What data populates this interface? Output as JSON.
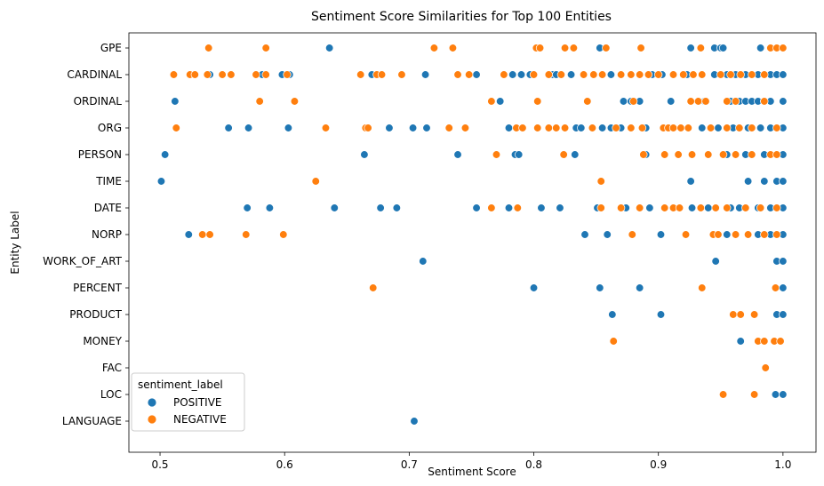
{
  "chart_data": {
    "type": "scatter",
    "title": "Sentiment Score Similarities for Top 100 Entities",
    "xlabel": "Sentiment Score",
    "ylabel": "Entity Label",
    "xlim": [
      0.475,
      1.0265
    ],
    "xticks": [
      "0.5",
      "0.6",
      "0.7",
      "0.8",
      "0.9",
      "1.0"
    ],
    "xtick_values": [
      0.5,
      0.6,
      0.7,
      0.8,
      0.9,
      1.0
    ],
    "categories": [
      "GPE",
      "CARDINAL",
      "ORDINAL",
      "ORG",
      "PERSON",
      "TIME",
      "DATE",
      "NORP",
      "WORK_OF_ART",
      "PERCENT",
      "PRODUCT",
      "MONEY",
      "FAC",
      "LOC",
      "LANGUAGE"
    ],
    "grid": false,
    "legend": {
      "title": "sentiment_label",
      "position": "lower-left"
    },
    "series": [
      {
        "name": "POSITIVE",
        "color": "#1f77b4",
        "points": [
          [
            0.636,
            "GPE"
          ],
          [
            0.853,
            "GPE"
          ],
          [
            0.926,
            "GPE"
          ],
          [
            0.945,
            "GPE"
          ],
          [
            0.95,
            "GPE"
          ],
          [
            0.952,
            "GPE"
          ],
          [
            0.982,
            "GPE"
          ],
          [
            0.54,
            "CARDINAL"
          ],
          [
            0.582,
            "CARDINAL"
          ],
          [
            0.598,
            "CARDINAL"
          ],
          [
            0.604,
            "CARDINAL"
          ],
          [
            0.67,
            "CARDINAL"
          ],
          [
            0.713,
            "CARDINAL"
          ],
          [
            0.754,
            "CARDINAL"
          ],
          [
            0.783,
            "CARDINAL"
          ],
          [
            0.79,
            "CARDINAL"
          ],
          [
            0.797,
            "CARDINAL"
          ],
          [
            0.815,
            "CARDINAL"
          ],
          [
            0.818,
            "CARDINAL"
          ],
          [
            0.83,
            "CARDINAL"
          ],
          [
            0.862,
            "CARDINAL"
          ],
          [
            0.895,
            "CARDINAL"
          ],
          [
            0.903,
            "CARDINAL"
          ],
          [
            0.923,
            "CARDINAL"
          ],
          [
            0.945,
            "CARDINAL"
          ],
          [
            0.955,
            "CARDINAL"
          ],
          [
            0.962,
            "CARDINAL"
          ],
          [
            0.97,
            "CARDINAL"
          ],
          [
            0.98,
            "CARDINAL"
          ],
          [
            0.99,
            "CARDINAL"
          ],
          [
            0.995,
            "CARDINAL"
          ],
          [
            1.0,
            "CARDINAL"
          ],
          [
            0.512,
            "ORDINAL"
          ],
          [
            0.773,
            "ORDINAL"
          ],
          [
            0.872,
            "ORDINAL"
          ],
          [
            0.878,
            "ORDINAL"
          ],
          [
            0.885,
            "ORDINAL"
          ],
          [
            0.91,
            "ORDINAL"
          ],
          [
            0.937,
            "ORDINAL"
          ],
          [
            0.958,
            "ORDINAL"
          ],
          [
            0.965,
            "ORDINAL"
          ],
          [
            0.97,
            "ORDINAL"
          ],
          [
            0.975,
            "ORDINAL"
          ],
          [
            0.98,
            "ORDINAL"
          ],
          [
            0.985,
            "ORDINAL"
          ],
          [
            0.99,
            "ORDINAL"
          ],
          [
            1.0,
            "ORDINAL"
          ],
          [
            0.555,
            "ORG"
          ],
          [
            0.571,
            "ORG"
          ],
          [
            0.603,
            "ORG"
          ],
          [
            0.684,
            "ORG"
          ],
          [
            0.703,
            "ORG"
          ],
          [
            0.714,
            "ORG"
          ],
          [
            0.78,
            "ORG"
          ],
          [
            0.834,
            "ORG"
          ],
          [
            0.838,
            "ORG"
          ],
          [
            0.855,
            "ORG"
          ],
          [
            0.862,
            "ORG"
          ],
          [
            0.87,
            "ORG"
          ],
          [
            0.89,
            "ORG"
          ],
          [
            0.935,
            "ORG"
          ],
          [
            0.948,
            "ORG"
          ],
          [
            0.96,
            "ORG"
          ],
          [
            0.972,
            "ORG"
          ],
          [
            0.982,
            "ORG"
          ],
          [
            0.99,
            "ORG"
          ],
          [
            1.0,
            "ORG"
          ],
          [
            0.504,
            "PERSON"
          ],
          [
            0.664,
            "PERSON"
          ],
          [
            0.739,
            "PERSON"
          ],
          [
            0.785,
            "PERSON"
          ],
          [
            0.788,
            "PERSON"
          ],
          [
            0.833,
            "PERSON"
          ],
          [
            0.89,
            "PERSON"
          ],
          [
            0.955,
            "PERSON"
          ],
          [
            0.97,
            "PERSON"
          ],
          [
            0.985,
            "PERSON"
          ],
          [
            1.0,
            "PERSON"
          ],
          [
            0.501,
            "TIME"
          ],
          [
            0.926,
            "TIME"
          ],
          [
            0.972,
            "TIME"
          ],
          [
            0.985,
            "TIME"
          ],
          [
            0.995,
            "TIME"
          ],
          [
            1.0,
            "TIME"
          ],
          [
            0.57,
            "DATE"
          ],
          [
            0.588,
            "DATE"
          ],
          [
            0.64,
            "DATE"
          ],
          [
            0.677,
            "DATE"
          ],
          [
            0.69,
            "DATE"
          ],
          [
            0.754,
            "DATE"
          ],
          [
            0.78,
            "DATE"
          ],
          [
            0.806,
            "DATE"
          ],
          [
            0.821,
            "DATE"
          ],
          [
            0.851,
            "DATE"
          ],
          [
            0.874,
            "DATE"
          ],
          [
            0.893,
            "DATE"
          ],
          [
            0.927,
            "DATE"
          ],
          [
            0.94,
            "DATE"
          ],
          [
            0.958,
            "DATE"
          ],
          [
            0.965,
            "DATE"
          ],
          [
            0.98,
            "DATE"
          ],
          [
            0.99,
            "DATE"
          ],
          [
            1.0,
            "DATE"
          ],
          [
            0.523,
            "NORP"
          ],
          [
            0.841,
            "NORP"
          ],
          [
            0.859,
            "NORP"
          ],
          [
            0.902,
            "NORP"
          ],
          [
            0.955,
            "NORP"
          ],
          [
            0.98,
            "NORP"
          ],
          [
            0.99,
            "NORP"
          ],
          [
            1.0,
            "NORP"
          ],
          [
            0.711,
            "WORK_OF_ART"
          ],
          [
            0.946,
            "WORK_OF_ART"
          ],
          [
            0.995,
            "WORK_OF_ART"
          ],
          [
            1.0,
            "WORK_OF_ART"
          ],
          [
            0.8,
            "PERCENT"
          ],
          [
            0.853,
            "PERCENT"
          ],
          [
            0.885,
            "PERCENT"
          ],
          [
            1.0,
            "PERCENT"
          ],
          [
            0.863,
            "PRODUCT"
          ],
          [
            0.902,
            "PRODUCT"
          ],
          [
            0.995,
            "PRODUCT"
          ],
          [
            1.0,
            "PRODUCT"
          ],
          [
            0.966,
            "MONEY"
          ],
          [
            0.994,
            "LOC"
          ],
          [
            1.0,
            "LOC"
          ],
          [
            0.704,
            "LANGUAGE"
          ]
        ]
      },
      {
        "name": "NEGATIVE",
        "color": "#ff7f0e",
        "points": [
          [
            0.539,
            "GPE"
          ],
          [
            0.585,
            "GPE"
          ],
          [
            0.72,
            "GPE"
          ],
          [
            0.735,
            "GPE"
          ],
          [
            0.802,
            "GPE"
          ],
          [
            0.805,
            "GPE"
          ],
          [
            0.825,
            "GPE"
          ],
          [
            0.832,
            "GPE"
          ],
          [
            0.858,
            "GPE"
          ],
          [
            0.886,
            "GPE"
          ],
          [
            0.934,
            "GPE"
          ],
          [
            0.99,
            "GPE"
          ],
          [
            0.995,
            "GPE"
          ],
          [
            1.0,
            "GPE"
          ],
          [
            0.511,
            "CARDINAL"
          ],
          [
            0.524,
            "CARDINAL"
          ],
          [
            0.528,
            "CARDINAL"
          ],
          [
            0.538,
            "CARDINAL"
          ],
          [
            0.55,
            "CARDINAL"
          ],
          [
            0.557,
            "CARDINAL"
          ],
          [
            0.577,
            "CARDINAL"
          ],
          [
            0.585,
            "CARDINAL"
          ],
          [
            0.602,
            "CARDINAL"
          ],
          [
            0.661,
            "CARDINAL"
          ],
          [
            0.674,
            "CARDINAL"
          ],
          [
            0.678,
            "CARDINAL"
          ],
          [
            0.694,
            "CARDINAL"
          ],
          [
            0.739,
            "CARDINAL"
          ],
          [
            0.748,
            "CARDINAL"
          ],
          [
            0.776,
            "CARDINAL"
          ],
          [
            0.8,
            "CARDINAL"
          ],
          [
            0.812,
            "CARDINAL"
          ],
          [
            0.822,
            "CARDINAL"
          ],
          [
            0.84,
            "CARDINAL"
          ],
          [
            0.848,
            "CARDINAL"
          ],
          [
            0.855,
            "CARDINAL"
          ],
          [
            0.87,
            "CARDINAL"
          ],
          [
            0.878,
            "CARDINAL"
          ],
          [
            0.885,
            "CARDINAL"
          ],
          [
            0.892,
            "CARDINAL"
          ],
          [
            0.9,
            "CARDINAL"
          ],
          [
            0.912,
            "CARDINAL"
          ],
          [
            0.92,
            "CARDINAL"
          ],
          [
            0.928,
            "CARDINAL"
          ],
          [
            0.935,
            "CARDINAL"
          ],
          [
            0.95,
            "CARDINAL"
          ],
          [
            0.958,
            "CARDINAL"
          ],
          [
            0.966,
            "CARDINAL"
          ],
          [
            0.975,
            "CARDINAL"
          ],
          [
            0.985,
            "CARDINAL"
          ],
          [
            0.58,
            "ORDINAL"
          ],
          [
            0.608,
            "ORDINAL"
          ],
          [
            0.766,
            "ORDINAL"
          ],
          [
            0.803,
            "ORDINAL"
          ],
          [
            0.843,
            "ORDINAL"
          ],
          [
            0.88,
            "ORDINAL"
          ],
          [
            0.926,
            "ORDINAL"
          ],
          [
            0.932,
            "ORDINAL"
          ],
          [
            0.938,
            "ORDINAL"
          ],
          [
            0.955,
            "ORDINAL"
          ],
          [
            0.962,
            "ORDINAL"
          ],
          [
            0.985,
            "ORDINAL"
          ],
          [
            0.513,
            "ORG"
          ],
          [
            0.633,
            "ORG"
          ],
          [
            0.665,
            "ORG"
          ],
          [
            0.667,
            "ORG"
          ],
          [
            0.732,
            "ORG"
          ],
          [
            0.745,
            "ORG"
          ],
          [
            0.786,
            "ORG"
          ],
          [
            0.791,
            "ORG"
          ],
          [
            0.803,
            "ORG"
          ],
          [
            0.812,
            "ORG"
          ],
          [
            0.818,
            "ORG"
          ],
          [
            0.825,
            "ORG"
          ],
          [
            0.847,
            "ORG"
          ],
          [
            0.866,
            "ORG"
          ],
          [
            0.878,
            "ORG"
          ],
          [
            0.887,
            "ORG"
          ],
          [
            0.904,
            "ORG"
          ],
          [
            0.908,
            "ORG"
          ],
          [
            0.912,
            "ORG"
          ],
          [
            0.918,
            "ORG"
          ],
          [
            0.924,
            "ORG"
          ],
          [
            0.942,
            "ORG"
          ],
          [
            0.955,
            "ORG"
          ],
          [
            0.965,
            "ORG"
          ],
          [
            0.975,
            "ORG"
          ],
          [
            0.995,
            "ORG"
          ],
          [
            0.77,
            "PERSON"
          ],
          [
            0.824,
            "PERSON"
          ],
          [
            0.888,
            "PERSON"
          ],
          [
            0.905,
            "PERSON"
          ],
          [
            0.916,
            "PERSON"
          ],
          [
            0.927,
            "PERSON"
          ],
          [
            0.94,
            "PERSON"
          ],
          [
            0.952,
            "PERSON"
          ],
          [
            0.962,
            "PERSON"
          ],
          [
            0.975,
            "PERSON"
          ],
          [
            0.99,
            "PERSON"
          ],
          [
            0.995,
            "PERSON"
          ],
          [
            0.625,
            "TIME"
          ],
          [
            0.854,
            "TIME"
          ],
          [
            0.766,
            "DATE"
          ],
          [
            0.787,
            "DATE"
          ],
          [
            0.854,
            "DATE"
          ],
          [
            0.87,
            "DATE"
          ],
          [
            0.885,
            "DATE"
          ],
          [
            0.905,
            "DATE"
          ],
          [
            0.912,
            "DATE"
          ],
          [
            0.917,
            "DATE"
          ],
          [
            0.934,
            "DATE"
          ],
          [
            0.946,
            "DATE"
          ],
          [
            0.955,
            "DATE"
          ],
          [
            0.97,
            "DATE"
          ],
          [
            0.982,
            "DATE"
          ],
          [
            0.995,
            "DATE"
          ],
          [
            0.534,
            "NORP"
          ],
          [
            0.54,
            "NORP"
          ],
          [
            0.569,
            "NORP"
          ],
          [
            0.599,
            "NORP"
          ],
          [
            0.879,
            "NORP"
          ],
          [
            0.922,
            "NORP"
          ],
          [
            0.944,
            "NORP"
          ],
          [
            0.948,
            "NORP"
          ],
          [
            0.962,
            "NORP"
          ],
          [
            0.972,
            "NORP"
          ],
          [
            0.985,
            "NORP"
          ],
          [
            0.995,
            "NORP"
          ],
          [
            0.671,
            "PERCENT"
          ],
          [
            0.935,
            "PERCENT"
          ],
          [
            0.994,
            "PERCENT"
          ],
          [
            0.96,
            "PRODUCT"
          ],
          [
            0.966,
            "PRODUCT"
          ],
          [
            0.977,
            "PRODUCT"
          ],
          [
            0.864,
            "MONEY"
          ],
          [
            0.98,
            "MONEY"
          ],
          [
            0.985,
            "MONEY"
          ],
          [
            0.993,
            "MONEY"
          ],
          [
            0.998,
            "MONEY"
          ],
          [
            0.986,
            "FAC"
          ],
          [
            0.952,
            "LOC"
          ],
          [
            0.977,
            "LOC"
          ]
        ]
      }
    ]
  }
}
